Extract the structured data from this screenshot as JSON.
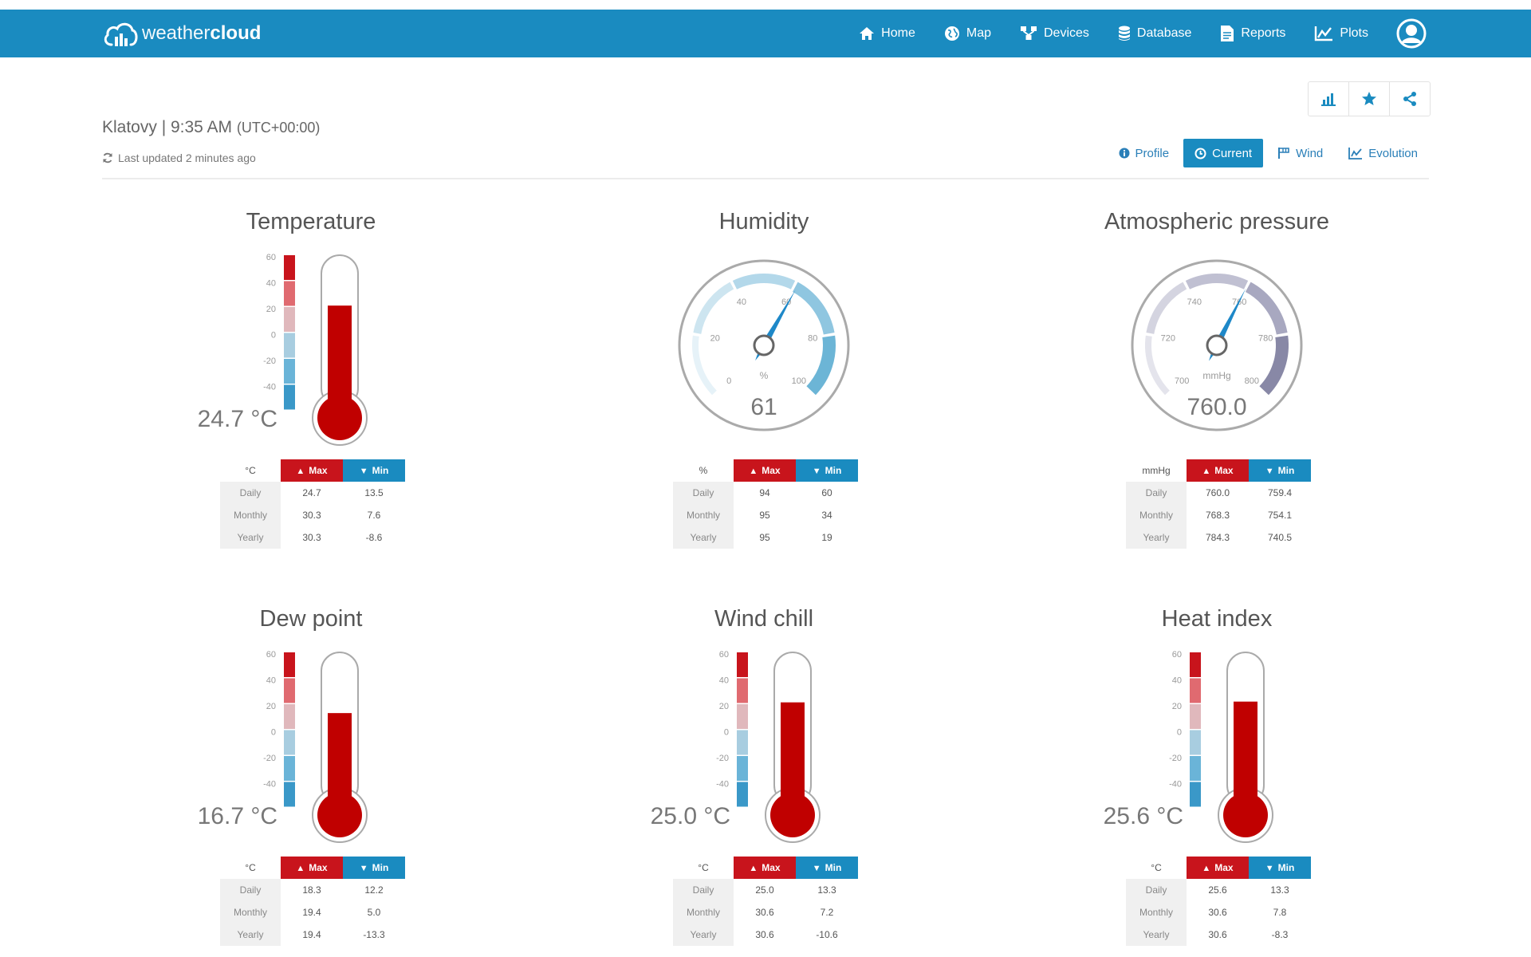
{
  "nav": {
    "logo_part1": "weather",
    "logo_part2": "cloud",
    "items": [
      {
        "label": "Home",
        "icon": "home-icon"
      },
      {
        "label": "Map",
        "icon": "globe-icon"
      },
      {
        "label": "Devices",
        "icon": "devices-icon"
      },
      {
        "label": "Database",
        "icon": "database-icon"
      },
      {
        "label": "Reports",
        "icon": "reports-icon"
      },
      {
        "label": "Plots",
        "icon": "plots-icon"
      }
    ],
    "user_icon": "user-icon"
  },
  "header": {
    "station": "Klatovy | 9:35 AM",
    "timezone": "(UTC+00:00)",
    "last_updated": "Last updated 2 minutes ago"
  },
  "toolbar": {
    "icons": [
      "chart-icon",
      "star-icon",
      "share-icon"
    ]
  },
  "tabs": [
    {
      "label": "Profile",
      "active": false
    },
    {
      "label": "Current",
      "active": true
    },
    {
      "label": "Wind",
      "active": false
    },
    {
      "label": "Evolution",
      "active": false
    }
  ],
  "colors": {
    "brand": "#1a8bc0",
    "max": "#c8141c",
    "min": "#1a8bc0",
    "mercury": "#c00000"
  },
  "stat_labels": {
    "max": "Max",
    "min": "Min",
    "daily": "Daily",
    "monthly": "Monthly",
    "yearly": "Yearly"
  },
  "cards": [
    {
      "title": "Temperature",
      "type": "thermometer",
      "value": 24.7,
      "display": "24.7 °C",
      "unit": "°C",
      "scale": [
        "60",
        "40",
        "20",
        "0",
        "-20",
        "-40"
      ],
      "stats": {
        "daily": [
          "24.7",
          "13.5"
        ],
        "monthly": [
          "30.3",
          "7.6"
        ],
        "yearly": [
          "30.3",
          "-8.6"
        ]
      }
    },
    {
      "title": "Humidity",
      "type": "gauge",
      "value": 61,
      "display": "61",
      "unit": "%",
      "gauge_min": 0,
      "gauge_max": 100,
      "gauge_ticks": [
        "0",
        "20",
        "40",
        "60",
        "80",
        "100"
      ],
      "stats": {
        "daily": [
          "94",
          "60"
        ],
        "monthly": [
          "95",
          "34"
        ],
        "yearly": [
          "95",
          "19"
        ]
      }
    },
    {
      "title": "Atmospheric pressure",
      "type": "gauge",
      "value": 760.0,
      "display": "760.0",
      "unit": "mmHg",
      "gauge_min": 700,
      "gauge_max": 800,
      "gauge_ticks": [
        "700",
        "720",
        "740",
        "760",
        "780",
        "800"
      ],
      "stats": {
        "daily": [
          "760.0",
          "759.4"
        ],
        "monthly": [
          "768.3",
          "754.1"
        ],
        "yearly": [
          "784.3",
          "740.5"
        ]
      }
    },
    {
      "title": "Dew point",
      "type": "thermometer",
      "value": 16.7,
      "display": "16.7 °C",
      "unit": "°C",
      "scale": [
        "60",
        "40",
        "20",
        "0",
        "-20",
        "-40"
      ],
      "stats": {
        "daily": [
          "18.3",
          "12.2"
        ],
        "monthly": [
          "19.4",
          "5.0"
        ],
        "yearly": [
          "19.4",
          "-13.3"
        ]
      }
    },
    {
      "title": "Wind chill",
      "type": "thermometer",
      "value": 25.0,
      "display": "25.0 °C",
      "unit": "°C",
      "scale": [
        "60",
        "40",
        "20",
        "0",
        "-20",
        "-40"
      ],
      "stats": {
        "daily": [
          "25.0",
          "13.3"
        ],
        "monthly": [
          "30.6",
          "7.2"
        ],
        "yearly": [
          "30.6",
          "-10.6"
        ]
      }
    },
    {
      "title": "Heat index",
      "type": "thermometer",
      "value": 25.6,
      "display": "25.6 °C",
      "unit": "°C",
      "scale": [
        "60",
        "40",
        "20",
        "0",
        "-20",
        "-40"
      ],
      "stats": {
        "daily": [
          "25.6",
          "13.3"
        ],
        "monthly": [
          "30.6",
          "7.8"
        ],
        "yearly": [
          "30.6",
          "-8.3"
        ]
      }
    }
  ]
}
